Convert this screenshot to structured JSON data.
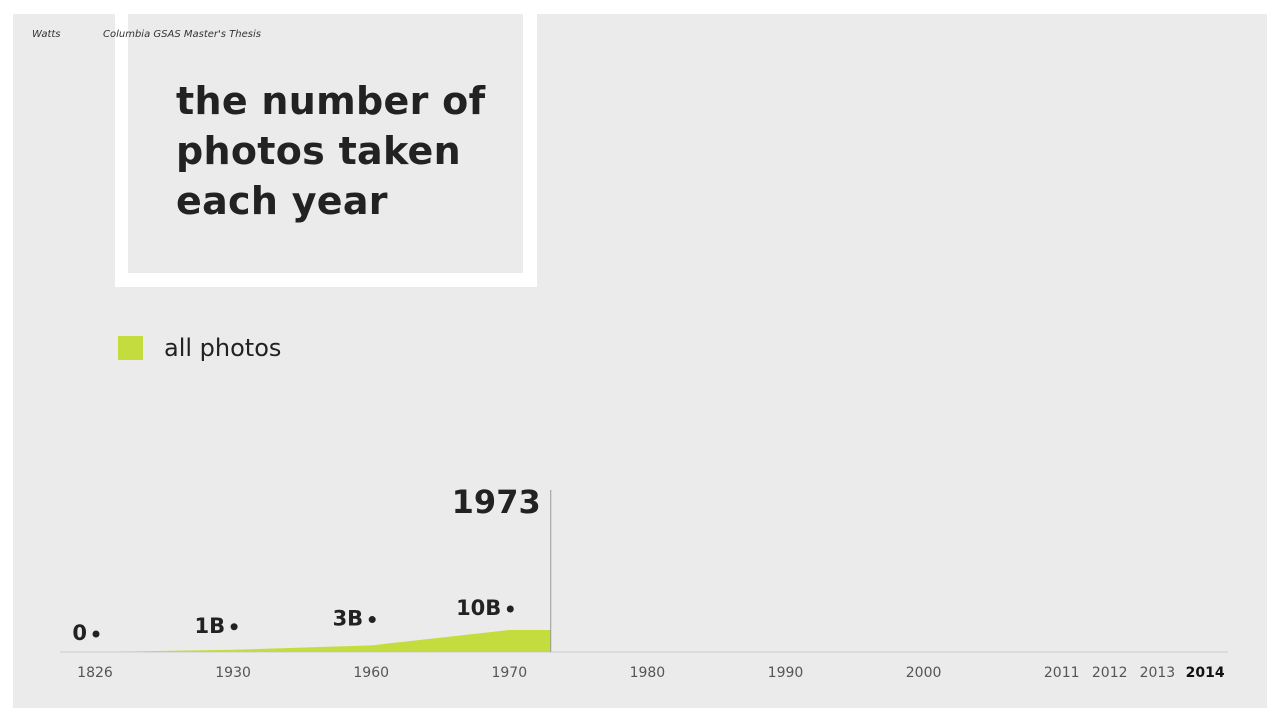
{
  "header": {
    "author": "Watts",
    "source": "Columbia GSAS Master's Thesis"
  },
  "chart_data": {
    "type": "area",
    "title": "the number of photos taken each year",
    "categories": [
      "1826",
      "1930",
      "1960",
      "1970",
      "1980",
      "1990",
      "2000",
      "2011",
      "2012",
      "2013",
      "2014"
    ],
    "series": [
      {
        "name": "all photos",
        "color": "#c5dc3f",
        "values": [
          0,
          1,
          3,
          10,
          null,
          null,
          null,
          null,
          null,
          null,
          null
        ],
        "value_labels": [
          "0",
          "1B",
          "3B",
          "10B",
          null,
          null,
          null,
          null,
          null,
          null,
          null
        ]
      }
    ],
    "current_year": 1973
  }
}
